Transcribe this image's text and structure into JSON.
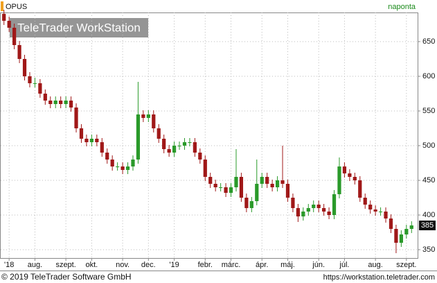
{
  "chart_data": {
    "type": "candlestick",
    "title": "OPUS",
    "period": "naponta",
    "watermark": "TeleTrader WorkStation",
    "footer_left": "© 2019 TeleTrader Software GmbH",
    "footer_right": "https://workstation.teletrader.com",
    "last_value": 385,
    "categories": [
      null,
      "'18",
      null,
      null,
      null,
      null,
      "aug.",
      null,
      null,
      null,
      null,
      null,
      "szept.",
      null,
      null,
      null,
      null,
      "okt.",
      null,
      null,
      null,
      null,
      null,
      "nov.",
      null,
      null,
      null,
      null,
      "dec.",
      null,
      null,
      null,
      null,
      "'19",
      null,
      null,
      null,
      null,
      null,
      "febr.",
      null,
      null,
      null,
      null,
      "márc.",
      null,
      null,
      null,
      null,
      null,
      "ápr.",
      null,
      null,
      null,
      null,
      "máj.",
      null,
      null,
      null,
      null,
      null,
      "jún.",
      null,
      null,
      null,
      null,
      "júl.",
      null,
      null,
      null,
      null,
      null,
      "aug.",
      null,
      null,
      null,
      null,
      null,
      "szept.",
      null
    ],
    "open": [
      690,
      680,
      670,
      645,
      625,
      600,
      590,
      590,
      575,
      565,
      560,
      565,
      560,
      565,
      555,
      525,
      510,
      505,
      510,
      505,
      490,
      480,
      470,
      470,
      465,
      470,
      480,
      545,
      540,
      545,
      525,
      510,
      495,
      490,
      500,
      500,
      505,
      505,
      490,
      480,
      455,
      445,
      440,
      440,
      432,
      440,
      455,
      425,
      410,
      420,
      445,
      455,
      445,
      440,
      450,
      445,
      425,
      410,
      398,
      405,
      410,
      415,
      410,
      405,
      400,
      430,
      470,
      460,
      455,
      450,
      425,
      415,
      408,
      405,
      405,
      395,
      380,
      360,
      372,
      380
    ],
    "high": [
      696,
      686,
      676,
      651,
      631,
      606,
      598,
      596,
      581,
      571,
      571,
      571,
      571,
      571,
      561,
      531,
      516,
      516,
      516,
      511,
      496,
      486,
      476,
      476,
      476,
      486,
      592,
      551,
      551,
      551,
      531,
      516,
      501,
      506,
      506,
      511,
      511,
      511,
      496,
      486,
      461,
      451,
      446,
      446,
      446,
      495,
      461,
      431,
      426,
      480,
      461,
      461,
      451,
      456,
      500,
      451,
      431,
      416,
      411,
      416,
      421,
      421,
      416,
      411,
      436,
      483,
      476,
      466,
      461,
      456,
      431,
      421,
      414,
      411,
      411,
      401,
      386,
      378,
      386,
      391
    ],
    "low": [
      674,
      664,
      639,
      619,
      594,
      584,
      584,
      569,
      559,
      554,
      554,
      554,
      554,
      549,
      519,
      504,
      499,
      499,
      499,
      484,
      474,
      464,
      464,
      459,
      459,
      464,
      474,
      534,
      534,
      519,
      504,
      489,
      484,
      484,
      494,
      494,
      499,
      484,
      474,
      449,
      439,
      434,
      434,
      426,
      426,
      434,
      419,
      404,
      404,
      414,
      439,
      439,
      434,
      434,
      439,
      419,
      404,
      390,
      392,
      399,
      404,
      404,
      399,
      394,
      394,
      424,
      454,
      449,
      444,
      419,
      409,
      402,
      399,
      399,
      389,
      374,
      345,
      354,
      366,
      374
    ],
    "close": [
      680,
      670,
      645,
      625,
      600,
      590,
      590,
      575,
      565,
      560,
      565,
      560,
      565,
      555,
      525,
      510,
      505,
      510,
      505,
      490,
      480,
      470,
      470,
      465,
      470,
      480,
      545,
      540,
      545,
      525,
      510,
      495,
      490,
      500,
      500,
      505,
      505,
      490,
      480,
      455,
      445,
      440,
      440,
      432,
      440,
      455,
      425,
      410,
      420,
      445,
      455,
      445,
      440,
      450,
      445,
      425,
      410,
      398,
      405,
      410,
      415,
      410,
      405,
      400,
      430,
      470,
      460,
      455,
      450,
      425,
      415,
      408,
      405,
      405,
      395,
      380,
      360,
      372,
      380,
      385
    ],
    "up_color": "#2a9a2a",
    "down_color": "#a01818",
    "ylim": [
      338,
      692
    ],
    "yticks": [
      350,
      400,
      450,
      500,
      550,
      600,
      650
    ],
    "grid": true
  }
}
